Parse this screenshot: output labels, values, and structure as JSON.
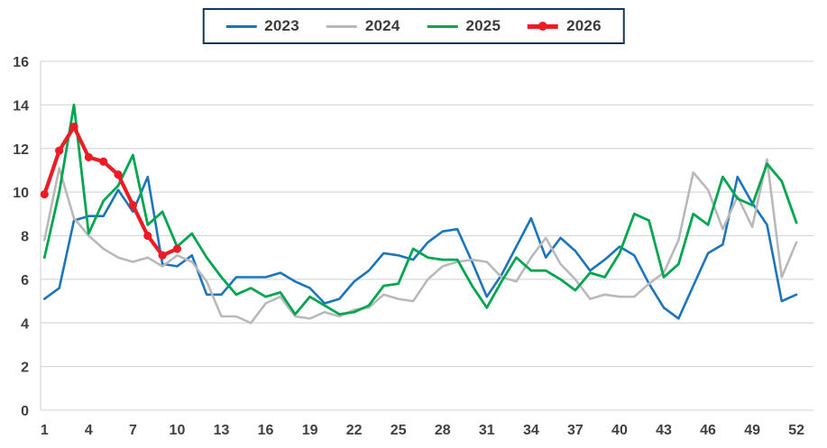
{
  "chart_data": {
    "type": "line",
    "title": "",
    "xlabel": "",
    "ylabel": "",
    "x_description": "week number 1-52",
    "x": [
      1,
      2,
      3,
      4,
      5,
      6,
      7,
      8,
      9,
      10,
      11,
      12,
      13,
      14,
      15,
      16,
      17,
      18,
      19,
      20,
      21,
      22,
      23,
      24,
      25,
      26,
      27,
      28,
      29,
      30,
      31,
      32,
      33,
      34,
      35,
      36,
      37,
      38,
      39,
      40,
      41,
      42,
      43,
      44,
      45,
      46,
      47,
      48,
      49,
      50,
      51,
      52
    ],
    "xticks": [
      1,
      4,
      7,
      10,
      13,
      16,
      19,
      22,
      25,
      28,
      31,
      34,
      37,
      40,
      43,
      46,
      49,
      52
    ],
    "yticks": [
      0,
      2,
      4,
      6,
      8,
      10,
      12,
      14,
      16
    ],
    "ylim": [
      0,
      16
    ],
    "grid": "horizontal",
    "legend_position": "top-center",
    "colors": {
      "blue_2023": "#1b75bc",
      "gray_2024": "#b9b9b9",
      "green_2025": "#00a64f",
      "red_2026": "#ec1c24",
      "legend_border": "#17375e",
      "gridline": "#d9d9d9",
      "tick_label": "#404040"
    },
    "series": [
      {
        "name": "2023",
        "color": "#1b75bc",
        "width": 2.6,
        "markers": false,
        "values": [
          5.1,
          5.6,
          8.7,
          8.9,
          8.9,
          10.1,
          9.1,
          10.7,
          6.7,
          6.6,
          7.1,
          5.3,
          5.3,
          6.1,
          6.1,
          6.1,
          6.3,
          5.9,
          5.6,
          4.9,
          5.1,
          5.9,
          6.4,
          7.2,
          7.1,
          6.9,
          7.7,
          8.2,
          8.3,
          6.8,
          5.2,
          6.2,
          7.5,
          8.8,
          7.0,
          7.9,
          7.3,
          6.4,
          6.9,
          7.5,
          7.1,
          5.8,
          4.7,
          4.2,
          5.7,
          7.2,
          7.6,
          10.7,
          9.5,
          8.5,
          5.0,
          5.3
        ]
      },
      {
        "name": "2024",
        "color": "#b9b9b9",
        "width": 2.6,
        "markers": false,
        "values": [
          7.8,
          11.1,
          8.8,
          8.0,
          7.4,
          7.0,
          6.8,
          7.0,
          6.6,
          7.1,
          6.8,
          5.9,
          4.3,
          4.3,
          4.0,
          4.9,
          5.2,
          4.3,
          4.2,
          4.5,
          4.3,
          4.6,
          4.7,
          5.3,
          5.1,
          5.0,
          6.0,
          6.6,
          6.8,
          6.9,
          6.8,
          6.1,
          5.9,
          7.0,
          7.9,
          6.7,
          6.0,
          5.1,
          5.3,
          5.2,
          5.2,
          5.8,
          6.3,
          7.8,
          10.9,
          10.1,
          8.3,
          9.8,
          8.4,
          11.5,
          6.1,
          7.7
        ]
      },
      {
        "name": "2025",
        "color": "#00a64f",
        "width": 2.8,
        "markers": false,
        "values": [
          7.0,
          10.0,
          14.0,
          8.1,
          9.6,
          10.3,
          11.7,
          8.5,
          9.1,
          7.5,
          8.1,
          7.0,
          6.1,
          5.3,
          5.6,
          5.2,
          5.4,
          4.4,
          5.2,
          4.8,
          4.4,
          4.5,
          4.8,
          5.7,
          5.8,
          7.4,
          7.0,
          6.9,
          6.9,
          5.7,
          4.7,
          5.9,
          7.0,
          6.4,
          6.4,
          6.0,
          5.5,
          6.3,
          6.1,
          7.2,
          9.0,
          8.7,
          6.1,
          6.7,
          9.0,
          8.5,
          10.7,
          9.7,
          9.4,
          11.3,
          10.5,
          8.6
        ]
      },
      {
        "name": "2026",
        "color": "#ec1c24",
        "width": 4.2,
        "markers": true,
        "values": [
          9.9,
          11.9,
          13.0,
          11.6,
          11.4,
          10.8,
          9.4,
          8.0,
          7.1,
          7.4
        ]
      }
    ]
  },
  "legend": {
    "items": [
      {
        "label": "2023"
      },
      {
        "label": "2024"
      },
      {
        "label": "2025"
      },
      {
        "label": "2026"
      }
    ]
  }
}
